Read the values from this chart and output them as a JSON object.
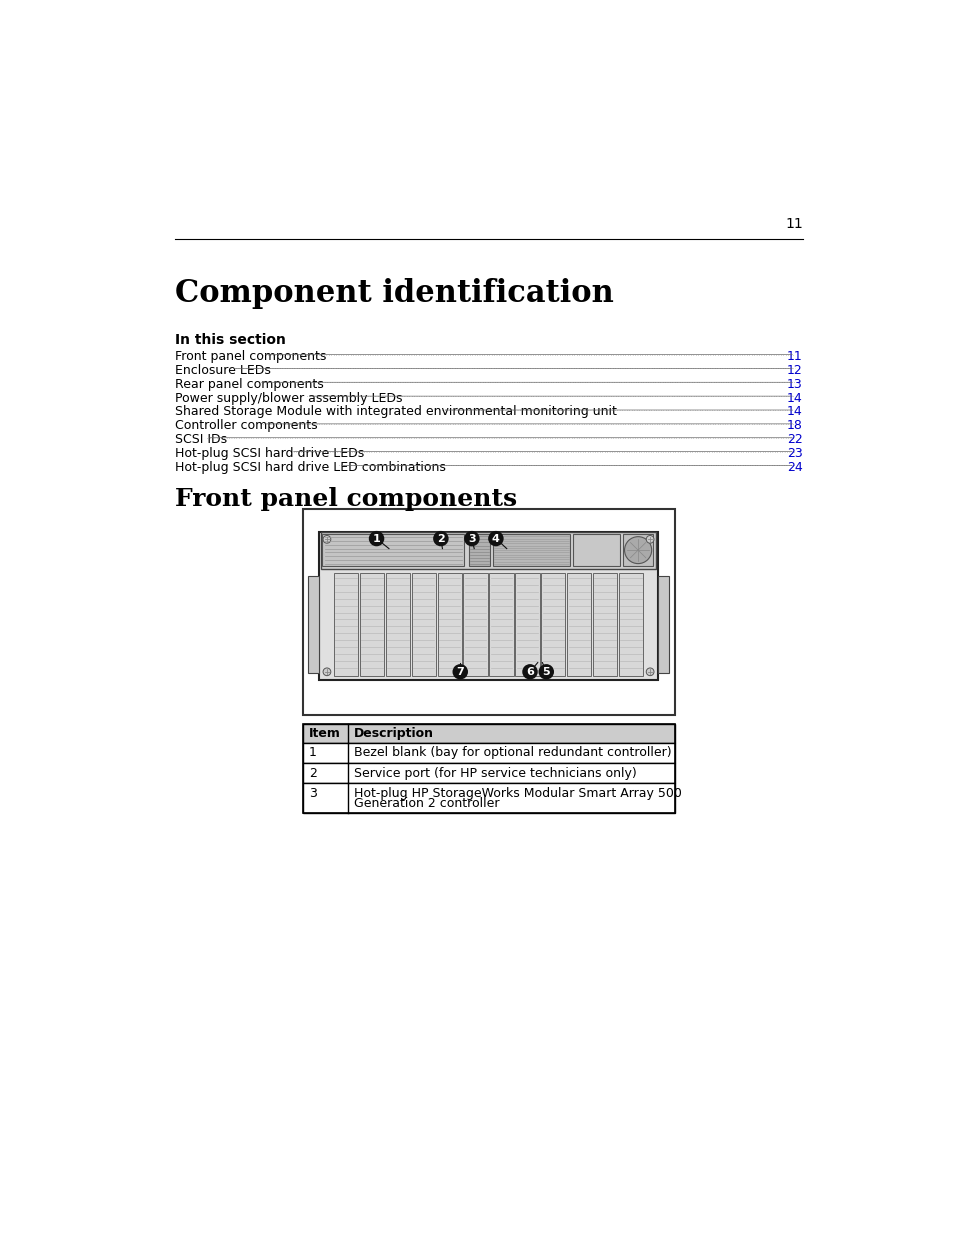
{
  "page_number": "11",
  "bg_color": "#ffffff",
  "main_title": "Component identification",
  "section_label": "In this section",
  "toc_entries": [
    [
      "Front panel components",
      "11"
    ],
    [
      "Enclosure LEDs",
      "12"
    ],
    [
      "Rear panel components",
      "13"
    ],
    [
      "Power supply/blower assembly LEDs",
      "14"
    ],
    [
      "Shared Storage Module with integrated environmental monitoring unit",
      "14"
    ],
    [
      "Controller components ",
      "18"
    ],
    [
      "SCSI IDs",
      "22"
    ],
    [
      "Hot-plug SCSI hard drive LEDs",
      "23"
    ],
    [
      "Hot-plug SCSI hard drive LED combinations",
      "24"
    ]
  ],
  "section2_title": "Front panel components",
  "table_headers": [
    "Item",
    "Description"
  ],
  "table_rows": [
    [
      "1",
      "Bezel blank (bay for optional redundant controller)"
    ],
    [
      "2",
      "Service port (for HP service technicians only)"
    ],
    [
      "3",
      "Hot-plug HP StorageWorks Modular Smart Array 500\nGeneration 2 controller"
    ]
  ],
  "link_color": "#0000cc",
  "text_color": "#000000",
  "header_color": "#000000",
  "line_color": "#000000",
  "table_border_color": "#000000",
  "table_header_bg": "#cccccc"
}
